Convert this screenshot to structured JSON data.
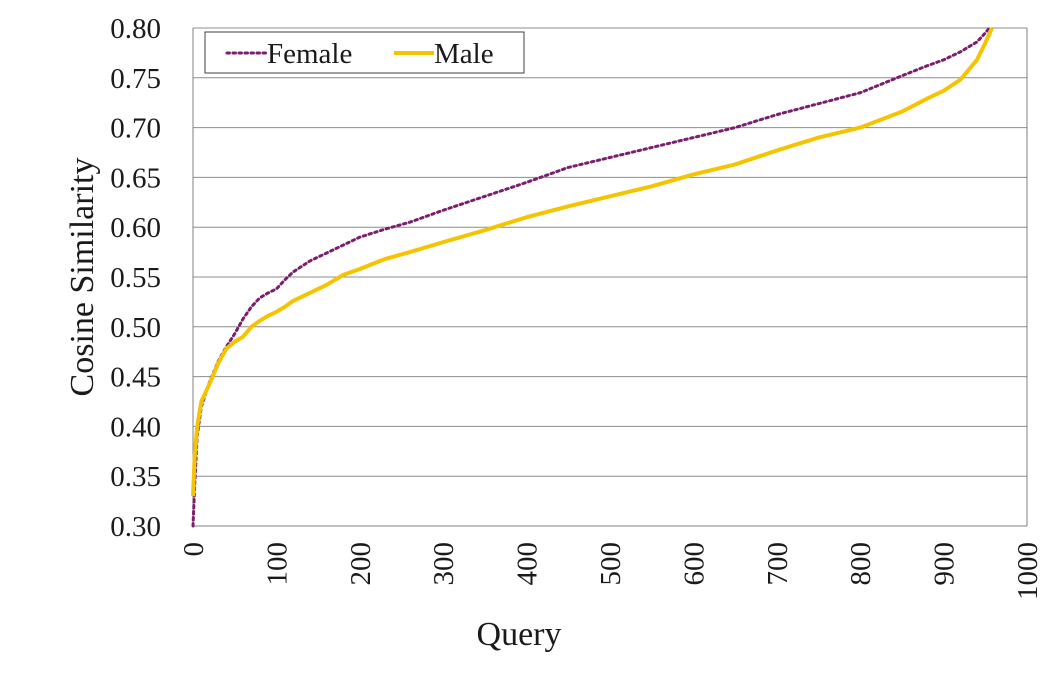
{
  "chart_data": {
    "type": "line",
    "xlabel": "Query",
    "ylabel": "Cosine Similarity",
    "xlim": [
      0,
      1000
    ],
    "ylim": [
      0.3,
      0.8
    ],
    "xticks": [
      "0",
      "100",
      "200",
      "300",
      "400",
      "500",
      "600",
      "700",
      "800",
      "900",
      "1000"
    ],
    "yticks": [
      "0.30",
      "0.35",
      "0.40",
      "0.45",
      "0.50",
      "0.55",
      "0.60",
      "0.65",
      "0.70",
      "0.75",
      "0.80"
    ],
    "grid": "horizontal",
    "legend_position": "top-left",
    "series": [
      {
        "name": "Female",
        "color": "#7a1f6e",
        "style": "dotted",
        "points": [
          [
            0,
            0.3
          ],
          [
            2,
            0.34
          ],
          [
            5,
            0.39
          ],
          [
            10,
            0.42
          ],
          [
            20,
            0.445
          ],
          [
            30,
            0.465
          ],
          [
            40,
            0.48
          ],
          [
            50,
            0.493
          ],
          [
            60,
            0.508
          ],
          [
            70,
            0.52
          ],
          [
            80,
            0.529
          ],
          [
            90,
            0.534
          ],
          [
            100,
            0.538
          ],
          [
            110,
            0.547
          ],
          [
            120,
            0.555
          ],
          [
            140,
            0.566
          ],
          [
            160,
            0.574
          ],
          [
            180,
            0.582
          ],
          [
            200,
            0.59
          ],
          [
            230,
            0.598
          ],
          [
            260,
            0.605
          ],
          [
            300,
            0.617
          ],
          [
            350,
            0.631
          ],
          [
            400,
            0.645
          ],
          [
            450,
            0.66
          ],
          [
            500,
            0.67
          ],
          [
            550,
            0.68
          ],
          [
            600,
            0.69
          ],
          [
            650,
            0.7
          ],
          [
            700,
            0.713
          ],
          [
            750,
            0.724
          ],
          [
            800,
            0.735
          ],
          [
            850,
            0.752
          ],
          [
            880,
            0.762
          ],
          [
            900,
            0.768
          ],
          [
            920,
            0.776
          ],
          [
            940,
            0.786
          ],
          [
            950,
            0.795
          ],
          [
            955,
            0.8
          ]
        ]
      },
      {
        "name": "Male",
        "color": "#f5c400",
        "style": "solid",
        "points": [
          [
            0,
            0.33
          ],
          [
            2,
            0.37
          ],
          [
            5,
            0.4
          ],
          [
            10,
            0.425
          ],
          [
            20,
            0.443
          ],
          [
            30,
            0.463
          ],
          [
            40,
            0.478
          ],
          [
            50,
            0.485
          ],
          [
            60,
            0.49
          ],
          [
            70,
            0.5
          ],
          [
            80,
            0.506
          ],
          [
            90,
            0.511
          ],
          [
            100,
            0.515
          ],
          [
            110,
            0.52
          ],
          [
            120,
            0.526
          ],
          [
            140,
            0.534
          ],
          [
            160,
            0.542
          ],
          [
            180,
            0.552
          ],
          [
            200,
            0.558
          ],
          [
            230,
            0.568
          ],
          [
            260,
            0.575
          ],
          [
            300,
            0.585
          ],
          [
            350,
            0.597
          ],
          [
            400,
            0.61
          ],
          [
            450,
            0.621
          ],
          [
            500,
            0.631
          ],
          [
            550,
            0.641
          ],
          [
            600,
            0.653
          ],
          [
            650,
            0.663
          ],
          [
            700,
            0.677
          ],
          [
            750,
            0.69
          ],
          [
            800,
            0.7
          ],
          [
            850,
            0.716
          ],
          [
            880,
            0.729
          ],
          [
            900,
            0.737
          ],
          [
            920,
            0.748
          ],
          [
            940,
            0.768
          ],
          [
            950,
            0.785
          ],
          [
            958,
            0.8
          ]
        ]
      }
    ]
  }
}
